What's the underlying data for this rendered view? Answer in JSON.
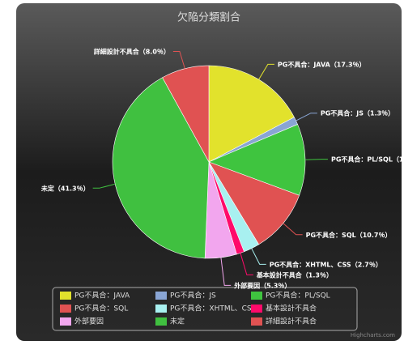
{
  "chart_data": {
    "type": "pie",
    "title": "欠陥分類割合",
    "categories": [
      "PG不具合：JAVA",
      "PG不具合：JS",
      "PG不具合：PL/SQL",
      "PG不具合：SQL",
      "PG不具合：XHTML、CSS",
      "基本設計不具合",
      "外部要因",
      "未定",
      "詳細設計不具合"
    ],
    "values": [
      17.3,
      1.3,
      12.0,
      10.7,
      2.7,
      1.3,
      5.3,
      41.3,
      8.0
    ],
    "value_labels": [
      "（17.3％）",
      "（1.3％）",
      "（12.0％）",
      "（10.7％）",
      "（2.7％）",
      "（1.3％）",
      "（5.3％）",
      "（41.3％）",
      "（8.0％）"
    ],
    "colors": [
      "#e2e22c",
      "#89a5d4",
      "#3fc43f",
      "#e05252",
      "#a8f0f0",
      "#ff0a6a",
      "#f2a6ee",
      "#40c040",
      "#e05252"
    ],
    "legend": "bottom",
    "credits": "Highcharts.com"
  }
}
